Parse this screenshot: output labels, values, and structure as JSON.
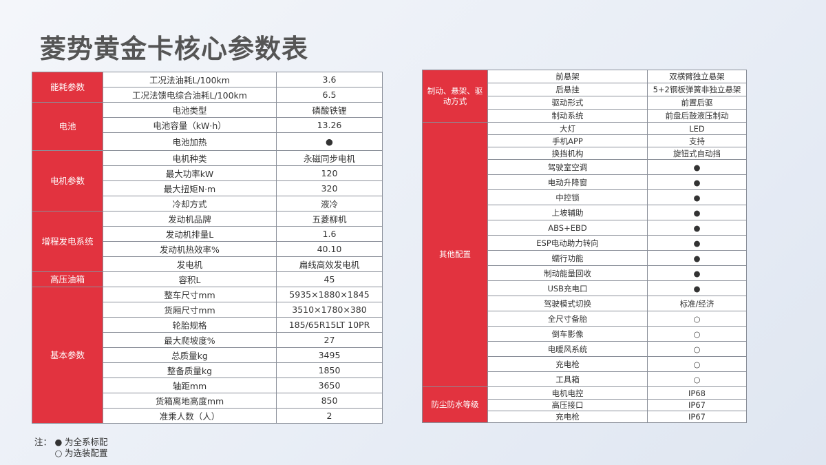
{
  "title": "菱势黄金卡核心参数表",
  "left_table": [
    {
      "category": "能耗参数",
      "rows": [
        {
          "item": "工况法油耗L/100km",
          "value": "3.6",
          "h": 22
        },
        {
          "item": "工况法馈电综合油耗L/100km",
          "value": "6.5",
          "h": 22
        }
      ]
    },
    {
      "category": "电池",
      "rows": [
        {
          "item": "电池类型",
          "value": "磷酸铁锂",
          "h": 22
        },
        {
          "item": "电池容量（kW·h）",
          "value": "13.26",
          "h": 22
        },
        {
          "item": "电池加热",
          "value": "●",
          "h": 26
        }
      ]
    },
    {
      "category": "电机参数",
      "rows": [
        {
          "item": "电机种类",
          "value": "永磁同步电机",
          "h": 22
        },
        {
          "item": "最大功率kW",
          "value": "120",
          "h": 22
        },
        {
          "item": "最大扭矩N·m",
          "value": "320",
          "h": 22
        },
        {
          "item": "冷却方式",
          "value": "液冷",
          "h": 22
        }
      ]
    },
    {
      "category": "增程发电系统",
      "rows": [
        {
          "item": "发动机品牌",
          "value": "五菱柳机",
          "h": 22
        },
        {
          "item": "发动机排量L",
          "value": "1.6",
          "h": 22
        },
        {
          "item": "发动机热效率%",
          "value": "40.10",
          "h": 22
        },
        {
          "item": "发电机",
          "value": "扁线高效发电机",
          "h": 22
        }
      ]
    },
    {
      "category": "高压油箱",
      "rows": [
        {
          "item": "容积L",
          "value": "45",
          "h": 22
        }
      ]
    },
    {
      "category": "基本参数",
      "rows": [
        {
          "item": "整车尺寸mm",
          "value": "5935×1880×1845",
          "h": 22
        },
        {
          "item": "货厢尺寸mm",
          "value": "3510×1780×380",
          "h": 22
        },
        {
          "item": "轮胎规格",
          "value": "185/65R15LT 10PR",
          "h": 22
        },
        {
          "item": "最大爬坡度%",
          "value": "27",
          "h": 22
        },
        {
          "item": "总质量kg",
          "value": "3495",
          "h": 22
        },
        {
          "item": "整备质量kg",
          "value": "1850",
          "h": 22
        },
        {
          "item": "轴距mm",
          "value": "3650",
          "h": 22
        },
        {
          "item": "货箱离地高度mm",
          "value": "850",
          "h": 22
        },
        {
          "item": "准乘人数（人）",
          "value": "2",
          "h": 22
        }
      ]
    }
  ],
  "right_table": [
    {
      "category": "制动、悬架、驱动方式",
      "rows": [
        {
          "item": "前悬架",
          "value": "双横臂独立悬架",
          "h": 19
        },
        {
          "item": "后悬挂",
          "value": "5+2钢板弹簧非独立悬架",
          "h": 19
        },
        {
          "item": "驱动形式",
          "value": "前置后驱",
          "h": 19
        },
        {
          "item": "制动系统",
          "value": "前盘后鼓液压制动",
          "h": 19
        }
      ]
    },
    {
      "category": "其他配置",
      "rows": [
        {
          "item": "大灯",
          "value": "LED",
          "h": 18
        },
        {
          "item": "手机APP",
          "value": "支持",
          "h": 18
        },
        {
          "item": "换挡机构",
          "value": "旋钮式自动挡",
          "h": 18
        },
        {
          "item": "驾驶室空调",
          "value": "●",
          "h": 22
        },
        {
          "item": "电动升降窗",
          "value": "●",
          "h": 22
        },
        {
          "item": "中控锁",
          "value": "●",
          "h": 22
        },
        {
          "item": "上坡辅助",
          "value": "●",
          "h": 22
        },
        {
          "item": "ABS+EBD",
          "value": "●",
          "h": 22
        },
        {
          "item": "ESP电动助力转向",
          "value": "●",
          "h": 22
        },
        {
          "item": "蠕行功能",
          "value": "●",
          "h": 22
        },
        {
          "item": "制动能量回收",
          "value": "●",
          "h": 22
        },
        {
          "item": "USB充电口",
          "value": "●",
          "h": 22
        },
        {
          "item": "驾驶模式切换",
          "value": "标准/经济",
          "h": 22
        },
        {
          "item": "全尺寸备胎",
          "value": "○",
          "h": 22
        },
        {
          "item": "倒车影像",
          "value": "○",
          "h": 22
        },
        {
          "item": "电暖风系统",
          "value": "○",
          "h": 22
        },
        {
          "item": "充电枪",
          "value": "○",
          "h": 22
        },
        {
          "item": "工具箱",
          "value": "○",
          "h": 22
        }
      ]
    },
    {
      "category": "防尘防水等级",
      "rows": [
        {
          "item": "电机电控",
          "value": "IP68",
          "h": 18
        },
        {
          "item": "高压接口",
          "value": "IP67",
          "h": 17
        },
        {
          "item": "充电枪",
          "value": "IP67",
          "h": 17
        }
      ]
    }
  ],
  "note": {
    "label": "注：",
    "items": [
      {
        "symbol": "●",
        "text": "为全系标配"
      },
      {
        "symbol": "○",
        "text": "为选装配置"
      }
    ]
  },
  "colors": {
    "category_bg": "#e2333f",
    "category_text": "#ffffff",
    "border": "#8a8f99"
  }
}
